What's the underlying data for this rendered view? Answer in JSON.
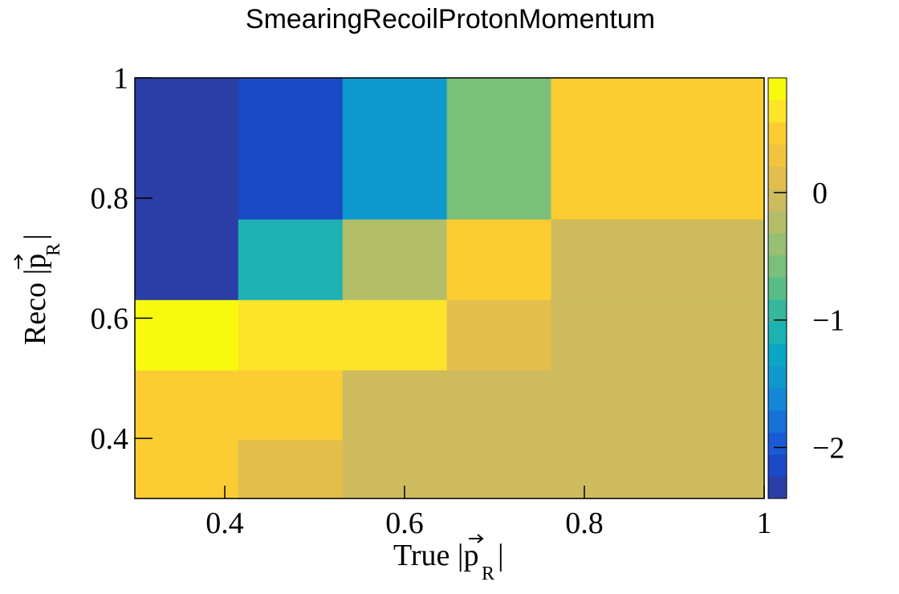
{
  "chart_data": {
    "type": "heatmap",
    "title": "SmearingRecoilProtonMomentum",
    "xlabel": {
      "prefix": "True |",
      "symbol": "p",
      "sub": "R",
      "suffix": "|"
    },
    "ylabel": {
      "prefix": "Reco |",
      "symbol": "p",
      "sub": "R",
      "suffix": "|"
    },
    "xlim": [
      0.3,
      1.0
    ],
    "ylim": [
      0.3,
      1.0
    ],
    "x_edges": [
      0.3,
      0.415,
      0.531,
      0.647,
      0.763,
      1.0
    ],
    "y_edges": [
      0.3,
      0.398,
      0.514,
      0.631,
      0.765,
      1.0
    ],
    "x_ticks": [
      {
        "value": 0.4,
        "label": "0.4"
      },
      {
        "value": 0.6,
        "label": "0.6"
      },
      {
        "value": 0.8,
        "label": "0.8"
      },
      {
        "value": 1.0,
        "label": "1"
      }
    ],
    "y_ticks": [
      {
        "value": 0.4,
        "label": "0.4"
      },
      {
        "value": 0.6,
        "label": "0.6"
      },
      {
        "value": 0.8,
        "label": "0.8"
      },
      {
        "value": 1.0,
        "label": "1"
      }
    ],
    "z_range": [
      -2.4,
      0.9
    ],
    "z_ticks": [
      {
        "value": 0,
        "label": "0"
      },
      {
        "value": -1,
        "label": "−1"
      },
      {
        "value": -2,
        "label": "−2"
      }
    ],
    "z_matrix": [
      [
        0.55,
        0.15,
        0.0,
        0.0,
        0.0
      ],
      [
        0.45,
        0.55,
        0.0,
        0.0,
        0.0
      ],
      [
        0.9,
        0.7,
        0.7,
        0.15,
        0.0
      ],
      [
        -2.4,
        -1.1,
        -0.25,
        0.4,
        0.0
      ],
      [
        -2.4,
        -2.1,
        -1.4,
        -0.55,
        0.55
      ]
    ],
    "palette": [
      "#2a3ea6",
      "#1a4ac6",
      "#1a5ad6",
      "#1672d8",
      "#1488d6",
      "#0f98cc",
      "#0aa6c6",
      "#1db1b2",
      "#35b89c",
      "#59bd88",
      "#7abf7a",
      "#98c072",
      "#b4be68",
      "#cdbb5e",
      "#e2bf4c",
      "#f1c33e",
      "#fbcd33",
      "#fce42a",
      "#f8fa0e"
    ],
    "grid": false,
    "legend": "colorbar-right"
  }
}
